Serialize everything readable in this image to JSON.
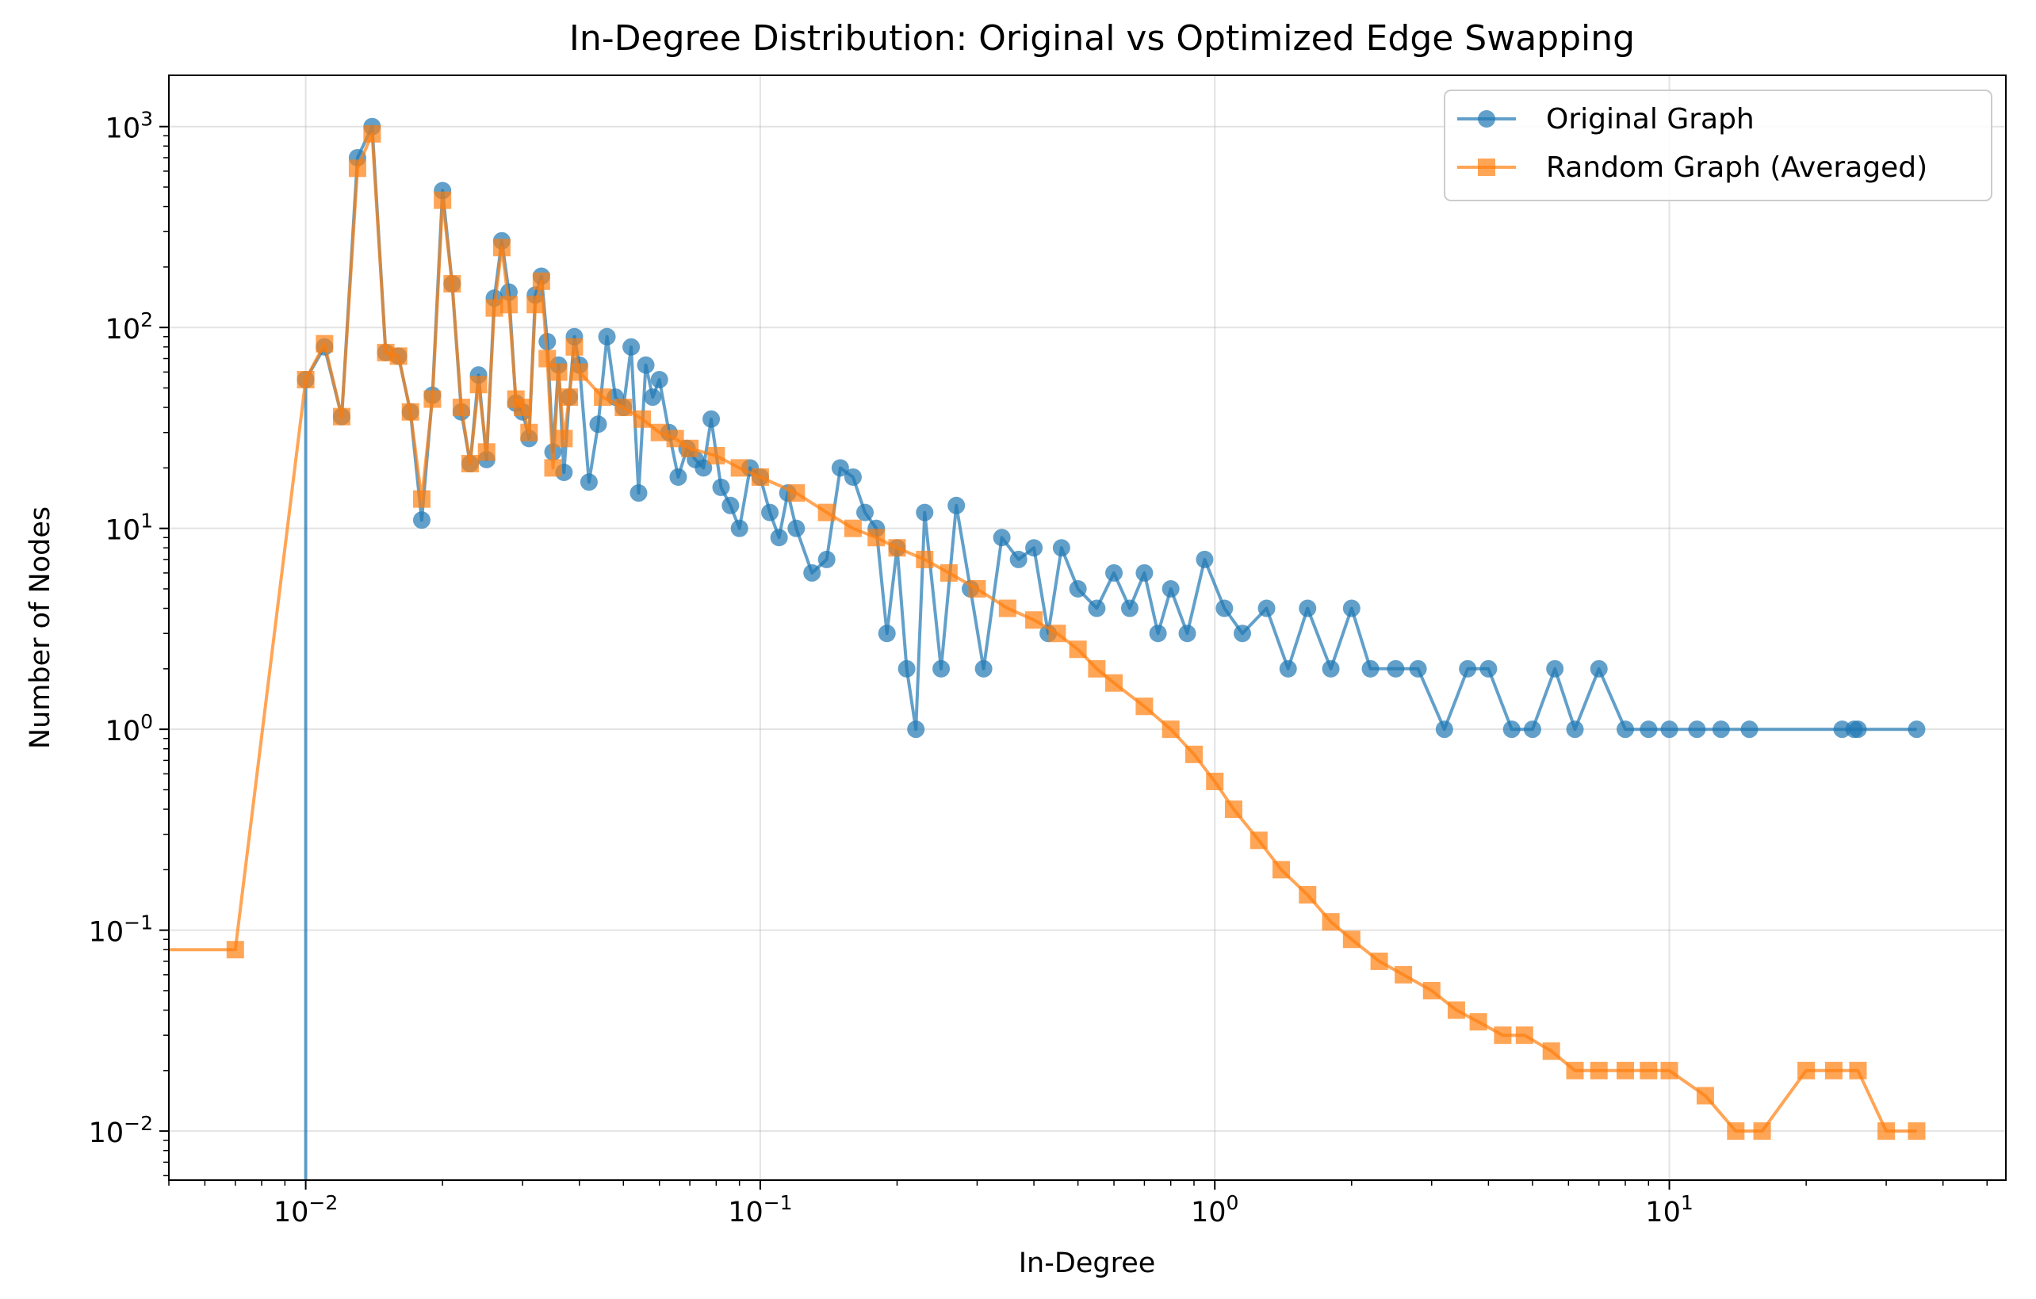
{
  "chart_data": {
    "type": "line",
    "title": "In-Degree Distribution: Original vs Optimized Edge Swapping",
    "xlabel": "In-Degree",
    "ylabel": "Number of Nodes",
    "xscale": "log",
    "yscale": "log",
    "xlim": [
      0.005,
      55
    ],
    "ylim": [
      0.0057,
      1800
    ],
    "grid": true,
    "legend_position": "top-right",
    "x_ticks": [
      {
        "base": "10",
        "exp": "−2"
      },
      {
        "base": "10",
        "exp": "−1"
      },
      {
        "base": "10",
        "exp": "0"
      },
      {
        "base": "10",
        "exp": "1"
      }
    ],
    "y_ticks": [
      {
        "base": "10",
        "exp": "−2"
      },
      {
        "base": "10",
        "exp": "−1"
      },
      {
        "base": "10",
        "exp": "0"
      },
      {
        "base": "10",
        "exp": "1"
      },
      {
        "base": "10",
        "exp": "2"
      },
      {
        "base": "10",
        "exp": "3"
      }
    ],
    "series": [
      {
        "name": "Original Graph",
        "color": "#1f77b4",
        "marker": "circle",
        "x": [
          0.01,
          0.011,
          0.012,
          0.013,
          0.014,
          0.015,
          0.016,
          0.017,
          0.018,
          0.019,
          0.02,
          0.021,
          0.022,
          0.023,
          0.024,
          0.025,
          0.026,
          0.027,
          0.028,
          0.029,
          0.03,
          0.031,
          0.032,
          0.033,
          0.034,
          0.035,
          0.036,
          0.037,
          0.038,
          0.039,
          0.04,
          0.042,
          0.044,
          0.046,
          0.048,
          0.05,
          0.052,
          0.054,
          0.056,
          0.058,
          0.06,
          0.063,
          0.066,
          0.069,
          0.072,
          0.075,
          0.078,
          0.082,
          0.086,
          0.09,
          0.095,
          0.1,
          0.105,
          0.11,
          0.115,
          0.12,
          0.13,
          0.14,
          0.15,
          0.16,
          0.17,
          0.18,
          0.19,
          0.2,
          0.21,
          0.22,
          0.23,
          0.25,
          0.27,
          0.29,
          0.31,
          0.34,
          0.37,
          0.4,
          0.43,
          0.46,
          0.5,
          0.55,
          0.6,
          0.65,
          0.7,
          0.75,
          0.8,
          0.87,
          0.95,
          1.05,
          1.15,
          1.3,
          1.45,
          1.6,
          1.8,
          2.0,
          2.2,
          2.5,
          2.8,
          3.2,
          3.6,
          4.0,
          4.5,
          5.0,
          5.6,
          6.2,
          7.0,
          8.0,
          9.0,
          10.0,
          11.5,
          13.0,
          15.0,
          24.0,
          25.5,
          26.0,
          35.0
        ],
        "y": [
          55,
          80,
          36,
          700,
          1000,
          75,
          72,
          38,
          11,
          46,
          480,
          165,
          38,
          21,
          58,
          22,
          140,
          270,
          150,
          42,
          38,
          28,
          145,
          180,
          85,
          24,
          65,
          19,
          45,
          90,
          65,
          17,
          33,
          90,
          45,
          40,
          80,
          15,
          65,
          45,
          55,
          30,
          18,
          25,
          22,
          20,
          35,
          16,
          13,
          10,
          20,
          18,
          12,
          9,
          15,
          10,
          6,
          7,
          20,
          18,
          12,
          10,
          3,
          8,
          2,
          1,
          12,
          2,
          13,
          5,
          2,
          9,
          7,
          8,
          3,
          8,
          5,
          4,
          6,
          4,
          6,
          3,
          5,
          3,
          7,
          4,
          3,
          4,
          2,
          4,
          2,
          4,
          2,
          2,
          2,
          1,
          2,
          2,
          1,
          1,
          2,
          1,
          2,
          1,
          1,
          1,
          1,
          1,
          1,
          1,
          1,
          1,
          1
        ]
      },
      {
        "name": "Random Graph (Averaged)",
        "color": "#ff7f0e",
        "marker": "square",
        "x": [
          0.0045,
          0.007,
          0.01,
          0.011,
          0.012,
          0.013,
          0.014,
          0.015,
          0.016,
          0.017,
          0.018,
          0.019,
          0.02,
          0.021,
          0.022,
          0.023,
          0.024,
          0.025,
          0.026,
          0.027,
          0.028,
          0.029,
          0.03,
          0.031,
          0.032,
          0.033,
          0.034,
          0.035,
          0.036,
          0.037,
          0.038,
          0.039,
          0.04,
          0.045,
          0.05,
          0.055,
          0.06,
          0.065,
          0.07,
          0.08,
          0.09,
          0.1,
          0.12,
          0.14,
          0.16,
          0.18,
          0.2,
          0.23,
          0.26,
          0.3,
          0.35,
          0.4,
          0.45,
          0.5,
          0.55,
          0.6,
          0.7,
          0.8,
          0.9,
          1.0,
          1.1,
          1.25,
          1.4,
          1.6,
          1.8,
          2.0,
          2.3,
          2.6,
          3.0,
          3.4,
          3.8,
          4.3,
          4.8,
          5.5,
          6.2,
          7.0,
          8.0,
          9.0,
          10.0,
          12.0,
          14.0,
          16.0,
          20.0,
          23.0,
          26.0,
          30.0,
          35.0
        ],
        "y": [
          0.08,
          0.08,
          55,
          83,
          36,
          620,
          920,
          75,
          72,
          38,
          14,
          44,
          430,
          165,
          40,
          21,
          52,
          24,
          125,
          250,
          130,
          44,
          40,
          30,
          130,
          170,
          70,
          20,
          60,
          28,
          45,
          80,
          60,
          45,
          40,
          35,
          30,
          28,
          25,
          23,
          20,
          18,
          15,
          12,
          10,
          9,
          8,
          7,
          6,
          5,
          4,
          3.5,
          3,
          2.5,
          2.0,
          1.7,
          1.3,
          1.0,
          0.75,
          0.55,
          0.4,
          0.28,
          0.2,
          0.15,
          0.11,
          0.09,
          0.07,
          0.06,
          0.05,
          0.04,
          0.035,
          0.03,
          0.03,
          0.025,
          0.02,
          0.02,
          0.02,
          0.02,
          0.02,
          0.015,
          0.01,
          0.01,
          0.02,
          0.02,
          0.02,
          0.01,
          0.01
        ]
      }
    ]
  }
}
